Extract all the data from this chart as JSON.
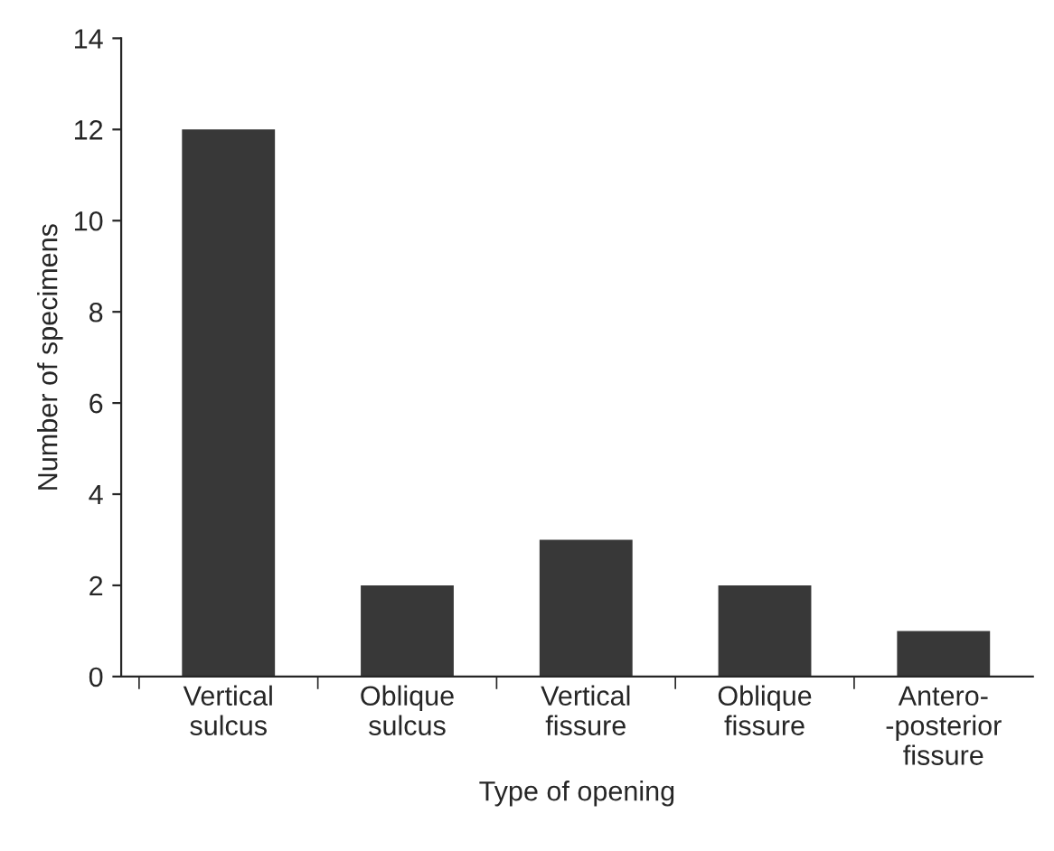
{
  "chart_data": {
    "type": "bar",
    "xlabel": "Type of opening",
    "ylabel": "Number of specimens",
    "categories": [
      "Vertical\nsulcus",
      "Oblique\nsulcus",
      "Vertical\nfissure",
      "Oblique\nfissure",
      "Antero-\n-posterior\nfissure"
    ],
    "values": [
      12,
      2,
      3,
      2,
      1
    ],
    "color": "#383838",
    "ylim": [
      0,
      14
    ],
    "yticks": [
      0,
      2,
      4,
      6,
      8,
      10,
      12,
      14
    ],
    "grid": false
  }
}
